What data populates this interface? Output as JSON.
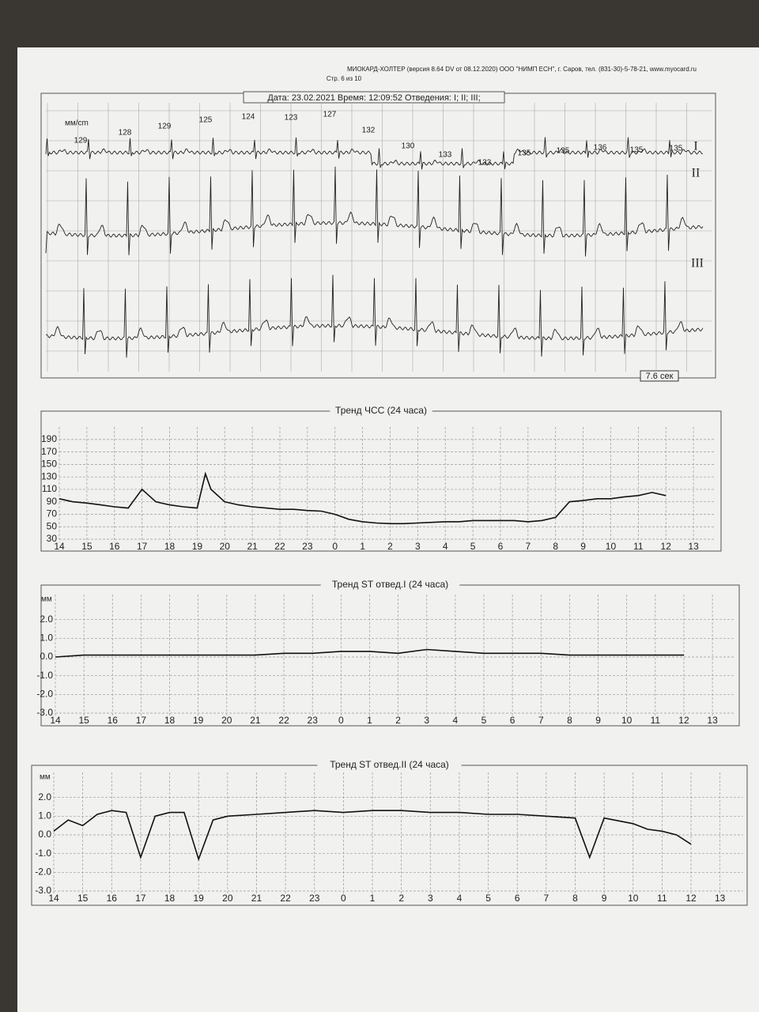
{
  "header": {
    "line1": "МИОКАРД-ХОЛТЕР (версия 8.64 DV от 08.12.2020)   ООО \"НИМП ЕСН\", г. Саров, тел. (831-30)-5-78-21, www.myocard.ru",
    "line2": "Стр. 6 из 10"
  },
  "ecg": {
    "info": "Дата: 23.02.2021   Время: 12:09:52   Отведения: I; II; III;",
    "scale": "мм/cm",
    "leads": [
      "I",
      "II",
      "III"
    ],
    "hr_labels": [
      "129",
      "128",
      "129",
      "125",
      "124",
      "123",
      "127",
      "132",
      "130",
      "133",
      "133",
      "135",
      "135",
      "136",
      "135",
      "135"
    ],
    "duration": "7.6 сек"
  },
  "chart_data": [
    {
      "type": "line",
      "title": "Тренд ЧСС (24 часа)",
      "color": "#111",
      "grid": true,
      "ylim": [
        30,
        200
      ],
      "xlim": [
        0,
        23.8
      ],
      "yticks": [
        30,
        50,
        70,
        90,
        110,
        130,
        150,
        170,
        190
      ],
      "xticks": [
        {
          "value": 0,
          "label": "14"
        },
        {
          "value": 1,
          "label": "15"
        },
        {
          "value": 2,
          "label": "16"
        },
        {
          "value": 3,
          "label": "17"
        },
        {
          "value": 4,
          "label": "18"
        },
        {
          "value": 5,
          "label": "19"
        },
        {
          "value": 6,
          "label": "20"
        },
        {
          "value": 7,
          "label": "21"
        },
        {
          "value": 8,
          "label": "22"
        },
        {
          "value": 9,
          "label": "23"
        },
        {
          "value": 10,
          "label": "0"
        },
        {
          "value": 11,
          "label": "1"
        },
        {
          "value": 12,
          "label": "2"
        },
        {
          "value": 13,
          "label": "3"
        },
        {
          "value": 14,
          "label": "4"
        },
        {
          "value": 15,
          "label": "5"
        },
        {
          "value": 16,
          "label": "6"
        },
        {
          "value": 17,
          "label": "7"
        },
        {
          "value": 18,
          "label": "8"
        },
        {
          "value": 19,
          "label": "9"
        },
        {
          "value": 20,
          "label": "10"
        },
        {
          "value": 21,
          "label": "11"
        },
        {
          "value": 22,
          "label": "12"
        },
        {
          "value": 23,
          "label": "13"
        }
      ],
      "x": [
        0,
        0.5,
        1,
        1.5,
        2,
        2.5,
        3,
        3.5,
        4,
        4.5,
        5,
        5.3,
        5.5,
        6,
        6.5,
        7,
        7.5,
        8,
        8.5,
        9,
        9.5,
        10,
        10.5,
        11,
        11.5,
        12,
        12.5,
        13,
        13.5,
        14,
        14.5,
        15,
        15.5,
        16,
        16.5,
        17,
        17.5,
        18,
        18.5,
        19,
        19.5,
        20,
        20.5,
        21,
        21.5,
        22
      ],
      "values": [
        95,
        90,
        88,
        85,
        82,
        80,
        110,
        90,
        85,
        82,
        80,
        135,
        110,
        90,
        85,
        82,
        80,
        78,
        78,
        76,
        75,
        70,
        62,
        58,
        56,
        55,
        55,
        56,
        57,
        58,
        58,
        60,
        60,
        60,
        60,
        58,
        60,
        65,
        90,
        92,
        95,
        95,
        98,
        100,
        105,
        100
      ]
    },
    {
      "type": "line",
      "title": "Тренд ST отвед.I (24 часа)",
      "ylabel": "мм",
      "color": "#111",
      "grid": true,
      "ylim": [
        -3,
        3
      ],
      "xlim": [
        0,
        23.8
      ],
      "yticks": [
        {
          "value": -3,
          "label": "-3.0"
        },
        {
          "value": -2,
          "label": "-2.0"
        },
        {
          "value": -1,
          "label": "-1.0"
        },
        {
          "value": 0,
          "label": "0.0"
        },
        {
          "value": 1,
          "label": "1.0"
        },
        {
          "value": 2,
          "label": "2.0"
        }
      ],
      "xticks": [
        {
          "value": 0,
          "label": "14"
        },
        {
          "value": 1,
          "label": "15"
        },
        {
          "value": 2,
          "label": "16"
        },
        {
          "value": 3,
          "label": "17"
        },
        {
          "value": 4,
          "label": "18"
        },
        {
          "value": 5,
          "label": "19"
        },
        {
          "value": 6,
          "label": "20"
        },
        {
          "value": 7,
          "label": "21"
        },
        {
          "value": 8,
          "label": "22"
        },
        {
          "value": 9,
          "label": "23"
        },
        {
          "value": 10,
          "label": "0"
        },
        {
          "value": 11,
          "label": "1"
        },
        {
          "value": 12,
          "label": "2"
        },
        {
          "value": 13,
          "label": "3"
        },
        {
          "value": 14,
          "label": "4"
        },
        {
          "value": 15,
          "label": "5"
        },
        {
          "value": 16,
          "label": "6"
        },
        {
          "value": 17,
          "label": "7"
        },
        {
          "value": 18,
          "label": "8"
        },
        {
          "value": 19,
          "label": "9"
        },
        {
          "value": 20,
          "label": "10"
        },
        {
          "value": 21,
          "label": "11"
        },
        {
          "value": 22,
          "label": "12"
        },
        {
          "value": 23,
          "label": "13"
        }
      ],
      "x": [
        0,
        1,
        2,
        3,
        4,
        5,
        6,
        7,
        8,
        9,
        10,
        11,
        12,
        13,
        14,
        15,
        16,
        17,
        18,
        19,
        20,
        21,
        22
      ],
      "values": [
        0.0,
        0.1,
        0.1,
        0.1,
        0.1,
        0.1,
        0.1,
        0.1,
        0.2,
        0.2,
        0.3,
        0.3,
        0.2,
        0.4,
        0.3,
        0.2,
        0.2,
        0.2,
        0.1,
        0.1,
        0.1,
        0.1,
        0.1
      ]
    },
    {
      "type": "line",
      "title": "Тренд ST отвед.II (24 часа)",
      "ylabel": "мм",
      "color": "#111",
      "grid": true,
      "ylim": [
        -3,
        3
      ],
      "xlim": [
        0,
        23.8
      ],
      "yticks": [
        {
          "value": -3,
          "label": "-3.0"
        },
        {
          "value": -2,
          "label": "-2.0"
        },
        {
          "value": -1,
          "label": "-1.0"
        },
        {
          "value": 0,
          "label": "0.0"
        },
        {
          "value": 1,
          "label": "1.0"
        },
        {
          "value": 2,
          "label": "2.0"
        }
      ],
      "xticks": [
        {
          "value": 0,
          "label": "14"
        },
        {
          "value": 1,
          "label": "15"
        },
        {
          "value": 2,
          "label": "16"
        },
        {
          "value": 3,
          "label": "17"
        },
        {
          "value": 4,
          "label": "18"
        },
        {
          "value": 5,
          "label": "19"
        },
        {
          "value": 6,
          "label": "20"
        },
        {
          "value": 7,
          "label": "21"
        },
        {
          "value": 8,
          "label": "22"
        },
        {
          "value": 9,
          "label": "23"
        },
        {
          "value": 10,
          "label": "0"
        },
        {
          "value": 11,
          "label": "1"
        },
        {
          "value": 12,
          "label": "2"
        },
        {
          "value": 13,
          "label": "3"
        },
        {
          "value": 14,
          "label": "4"
        },
        {
          "value": 15,
          "label": "5"
        },
        {
          "value": 16,
          "label": "6"
        },
        {
          "value": 17,
          "label": "7"
        },
        {
          "value": 18,
          "label": "8"
        },
        {
          "value": 19,
          "label": "9"
        },
        {
          "value": 20,
          "label": "10"
        },
        {
          "value": 21,
          "label": "11"
        },
        {
          "value": 22,
          "label": "12"
        },
        {
          "value": 23,
          "label": "13"
        }
      ],
      "x": [
        0,
        0.5,
        1,
        1.5,
        2,
        2.5,
        3,
        3.5,
        4,
        4.5,
        5,
        5.5,
        6,
        7,
        8,
        9,
        10,
        11,
        12,
        13,
        14,
        15,
        16,
        17,
        18,
        18.5,
        19,
        20,
        20.5,
        21,
        21.5,
        22
      ],
      "values": [
        0.2,
        0.8,
        0.5,
        1.1,
        1.3,
        1.2,
        -1.2,
        1.0,
        1.2,
        1.2,
        -1.3,
        0.8,
        1.0,
        1.1,
        1.2,
        1.3,
        1.2,
        1.3,
        1.3,
        1.2,
        1.2,
        1.1,
        1.1,
        1.0,
        0.9,
        -1.2,
        0.9,
        0.6,
        0.3,
        0.2,
        0.0,
        -0.5
      ]
    }
  ]
}
